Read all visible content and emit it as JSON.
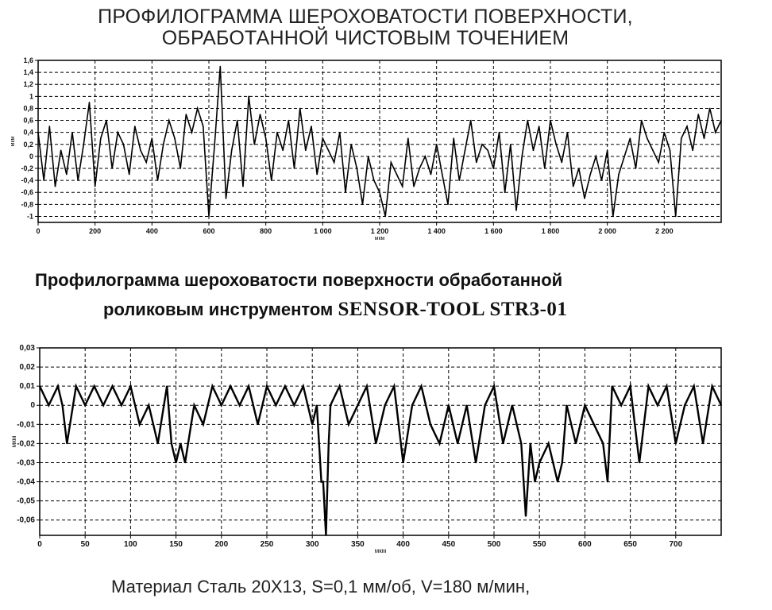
{
  "title1": {
    "line1": "ПРОФИЛОГРАММА ШЕРОХОВАТОСТИ ПОВЕРХНОСТИ,",
    "line2": "ОБРАБОТАННОЙ ЧИСТОВЫМ ТОЧЕНИЕМ"
  },
  "title2": {
    "line1": "Профилограмма шероховатости поверхности обработанной",
    "line2": "роликовым инструментом",
    "brand": "SENSOR-TOOL STR3-01"
  },
  "footer": "Материал Сталь 20Х13, S=0,1 мм/об, V=180 м/мин,",
  "chart_data": [
    {
      "type": "line",
      "title": "ПРОФИЛОГРАММА ШЕРОХОВАТОСТИ ПОВЕРХНОСТИ, ОБРАБОТАННОЙ ЧИСТОВЫМ ТОЧЕНИЕМ",
      "xlabel": "мкм",
      "ylabel": "мкм",
      "xlim": [
        0,
        2400
      ],
      "ylim": [
        -1.1,
        1.6
      ],
      "grid": true,
      "x_ticks": [
        "0",
        "200",
        "400",
        "600",
        "800",
        "1 000",
        "1 200",
        "1 400",
        "1 600",
        "1 800",
        "2 000",
        "2 200"
      ],
      "y_ticks": [
        "1,6",
        "1,4",
        "1,2",
        "1",
        "0,8",
        "0,6",
        "0,4",
        "0,2",
        "0",
        "-0,2",
        "-0,4",
        "-0,6",
        "-0,8",
        "-1"
      ],
      "series": [
        {
          "x": [
            0,
            20,
            40,
            60,
            80,
            100,
            120,
            140,
            160,
            180,
            200,
            220,
            240,
            260,
            280,
            300,
            320,
            340,
            360,
            380,
            400,
            420,
            440,
            460,
            480,
            500,
            520,
            540,
            560,
            580,
            600,
            620,
            640,
            660,
            680,
            700,
            720,
            740,
            760,
            780,
            800,
            820,
            840,
            860,
            880,
            900,
            920,
            940,
            960,
            980,
            1000,
            1020,
            1040,
            1060,
            1080,
            1100,
            1120,
            1140,
            1160,
            1180,
            1200,
            1220,
            1240,
            1260,
            1280,
            1300,
            1320,
            1340,
            1360,
            1380,
            1400,
            1420,
            1440,
            1460,
            1480,
            1500,
            1520,
            1540,
            1560,
            1580,
            1600,
            1620,
            1640,
            1660,
            1680,
            1700,
            1720,
            1740,
            1760,
            1780,
            1800,
            1820,
            1840,
            1860,
            1880,
            1900,
            1920,
            1940,
            1960,
            1980,
            2000,
            2020,
            2040,
            2060,
            2080,
            2100,
            2120,
            2140,
            2160,
            2180,
            2200,
            2220,
            2240,
            2260,
            2280,
            2300,
            2320,
            2340,
            2360,
            2380,
            2400
          ],
          "values": [
            0.4,
            -0.4,
            0.5,
            -0.5,
            0.1,
            -0.3,
            0.4,
            -0.4,
            0.2,
            0.9,
            -0.5,
            0.3,
            0.6,
            -0.2,
            0.4,
            0.2,
            -0.3,
            0.5,
            0.1,
            -0.1,
            0.3,
            -0.4,
            0.2,
            0.6,
            0.3,
            -0.2,
            0.7,
            0.4,
            0.8,
            0.5,
            -1.0,
            0.2,
            1.5,
            -0.7,
            0.1,
            0.6,
            -0.5,
            1.0,
            0.2,
            0.7,
            0.3,
            -0.4,
            0.4,
            0.1,
            0.6,
            -0.2,
            0.8,
            0.1,
            0.5,
            -0.3,
            0.3,
            0.1,
            -0.1,
            0.4,
            -0.6,
            0.2,
            -0.2,
            -0.8,
            0.0,
            -0.4,
            -0.6,
            -1.0,
            -0.1,
            -0.3,
            -0.5,
            0.3,
            -0.5,
            -0.2,
            0.0,
            -0.3,
            0.2,
            -0.3,
            -0.8,
            0.3,
            -0.4,
            0.1,
            0.6,
            -0.1,
            0.2,
            0.1,
            -0.2,
            0.4,
            -0.6,
            0.2,
            -0.9,
            0.0,
            0.6,
            0.1,
            0.5,
            -0.2,
            0.6,
            0.2,
            -0.1,
            0.4,
            -0.5,
            -0.2,
            -0.7,
            -0.3,
            0.0,
            -0.4,
            0.1,
            -1.0,
            -0.3,
            0.0,
            0.3,
            -0.2,
            0.6,
            0.3,
            0.1,
            -0.1,
            0.4,
            0.1,
            -1.0,
            0.3,
            0.5,
            0.1,
            0.7,
            0.3,
            0.8,
            0.4,
            0.6
          ]
        }
      ]
    },
    {
      "type": "line",
      "title": "Профилограмма шероховатости поверхности обработанной роликовым инструментом SENSOR-TOOL STR3-01",
      "xlabel": "мкм",
      "ylabel": "мкм",
      "xlim": [
        0,
        750
      ],
      "ylim": [
        -0.068,
        0.03
      ],
      "grid": true,
      "x_ticks": [
        "0",
        "50",
        "100",
        "150",
        "200",
        "250",
        "300",
        "350",
        "400",
        "450",
        "500",
        "550",
        "600",
        "650",
        "700"
      ],
      "y_ticks": [
        "0,03",
        "0,02",
        "0,01",
        "0",
        "-0,01",
        "-0,02",
        "-0,03",
        "-0,04",
        "-0,05",
        "-0,06"
      ],
      "series": [
        {
          "x": [
            0,
            10,
            20,
            25,
            30,
            40,
            50,
            60,
            70,
            80,
            90,
            100,
            110,
            120,
            130,
            140,
            145,
            150,
            155,
            160,
            170,
            180,
            190,
            200,
            210,
            220,
            230,
            240,
            250,
            260,
            270,
            280,
            290,
            300,
            305,
            310,
            312,
            315,
            318,
            320,
            330,
            340,
            350,
            360,
            370,
            380,
            390,
            400,
            410,
            420,
            430,
            440,
            450,
            460,
            470,
            480,
            490,
            500,
            510,
            520,
            530,
            535,
            540,
            545,
            550,
            560,
            570,
            575,
            580,
            590,
            600,
            610,
            620,
            625,
            630,
            640,
            650,
            660,
            670,
            680,
            690,
            700,
            710,
            720,
            730,
            740,
            750
          ],
          "values": [
            0.01,
            0.0,
            0.01,
            0.0,
            -0.02,
            0.01,
            0.0,
            0.01,
            0.0,
            0.01,
            0.0,
            0.01,
            -0.01,
            0.0,
            -0.02,
            0.01,
            -0.02,
            -0.03,
            -0.02,
            -0.03,
            0.0,
            -0.01,
            0.01,
            0.0,
            0.01,
            0.0,
            0.01,
            -0.01,
            0.01,
            0.0,
            0.01,
            0.0,
            0.01,
            -0.01,
            0.0,
            -0.04,
            -0.04,
            -0.068,
            -0.02,
            0.0,
            0.01,
            -0.01,
            0.0,
            0.01,
            -0.02,
            0.0,
            0.01,
            -0.03,
            0.0,
            0.01,
            -0.01,
            -0.02,
            0.0,
            -0.02,
            0.0,
            -0.03,
            0.0,
            0.01,
            -0.02,
            0.0,
            -0.02,
            -0.058,
            -0.02,
            -0.04,
            -0.03,
            -0.02,
            -0.04,
            -0.03,
            0.0,
            -0.02,
            0.0,
            -0.01,
            -0.02,
            -0.04,
            0.01,
            0.0,
            0.01,
            -0.03,
            0.01,
            0.0,
            0.01,
            -0.02,
            0.0,
            0.01,
            -0.02,
            0.01,
            0.0
          ]
        }
      ]
    }
  ]
}
